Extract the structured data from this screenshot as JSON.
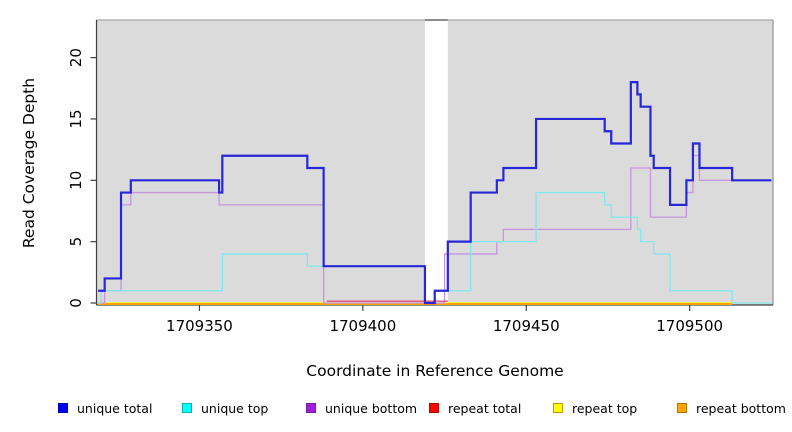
{
  "figure": {
    "xlabel": "Coordinate in Reference Genome",
    "ylabel": "Read Coverage Depth"
  },
  "chart_data": {
    "type": "line",
    "interpolation": "step-after",
    "title": "",
    "xlabel": "Coordinate in Reference Genome",
    "ylabel": "Read Coverage Depth",
    "xlim": [
      1709318.5,
      1709525.5
    ],
    "ylim": [
      0,
      23.1
    ],
    "x_ticks": [
      1709350,
      1709400,
      1709450,
      1709500
    ],
    "x_tick_labels": [
      "1709350",
      "1709400",
      "1709450",
      "1709500"
    ],
    "y_ticks": [
      0,
      5,
      10,
      15,
      20
    ],
    "y_tick_labels": [
      "0",
      "5",
      "10",
      "15",
      "20"
    ],
    "grid": false,
    "plot_background": "#dbdbdb",
    "gap_region": {
      "x_start": 1709419,
      "x_end": 1709426,
      "color": "#ffffff"
    },
    "draw_order": [
      "repeat top",
      "repeat bottom",
      "unique bottom",
      "repeat total",
      "unique top",
      "unique total"
    ],
    "series": [
      {
        "name": "unique total",
        "color": "#2727d8",
        "width": 2.2,
        "x_end": 1709525,
        "steps": [
          [
            1709319,
            1
          ],
          [
            1709321,
            2
          ],
          [
            1709326,
            9
          ],
          [
            1709329,
            10
          ],
          [
            1709356,
            9
          ],
          [
            1709357,
            12
          ],
          [
            1709383,
            11
          ],
          [
            1709388,
            3
          ],
          [
            1709419,
            0
          ],
          [
            1709422,
            1
          ],
          [
            1709426,
            5
          ],
          [
            1709433,
            9
          ],
          [
            1709441,
            10
          ],
          [
            1709443,
            11
          ],
          [
            1709453,
            15
          ],
          [
            1709474,
            14
          ],
          [
            1709476,
            13
          ],
          [
            1709482,
            18
          ],
          [
            1709484,
            17
          ],
          [
            1709485,
            16
          ],
          [
            1709488,
            12
          ],
          [
            1709489,
            11
          ],
          [
            1709494,
            8
          ],
          [
            1709499,
            10
          ],
          [
            1709501,
            13
          ],
          [
            1709503,
            11
          ],
          [
            1709513,
            10
          ]
        ]
      },
      {
        "name": "unique top",
        "color": "#80e8ec",
        "width": 1.3,
        "x_end": 1709525,
        "steps": [
          [
            1709319,
            0
          ],
          [
            1709320,
            1
          ],
          [
            1709357,
            4
          ],
          [
            1709383,
            3
          ],
          [
            1709419,
            0
          ],
          [
            1709422,
            1
          ],
          [
            1709433,
            5
          ],
          [
            1709453,
            9
          ],
          [
            1709474,
            8
          ],
          [
            1709476,
            7
          ],
          [
            1709484,
            6
          ],
          [
            1709485,
            5
          ],
          [
            1709489,
            4
          ],
          [
            1709494,
            1
          ],
          [
            1709513,
            0
          ]
        ]
      },
      {
        "name": "unique bottom",
        "color": "#c795df",
        "width": 1.3,
        "x_end": 1709525,
        "steps": [
          [
            1709319,
            0
          ],
          [
            1709321,
            1
          ],
          [
            1709326,
            8
          ],
          [
            1709329,
            9
          ],
          [
            1709356,
            8
          ],
          [
            1709388,
            0
          ],
          [
            1709425,
            4
          ],
          [
            1709441,
            5
          ],
          [
            1709443,
            6
          ],
          [
            1709482,
            11
          ],
          [
            1709488,
            7
          ],
          [
            1709499,
            9
          ],
          [
            1709501,
            12
          ],
          [
            1709503,
            10
          ]
        ]
      },
      {
        "name": "repeat total",
        "color": "#e0527a",
        "width": 1.3,
        "x_end": 1709513,
        "steps": [
          [
            1709319,
            0
          ]
        ],
        "visible_segment": [
          1709389,
          1709426
        ]
      },
      {
        "name": "repeat top",
        "color": "#ffff00",
        "width": 1.3,
        "x_end": 1709513,
        "steps": [
          [
            1709319,
            0
          ]
        ]
      },
      {
        "name": "repeat bottom",
        "color": "#ffa400",
        "width": 2,
        "x_end": 1709513,
        "steps": [
          [
            1709319,
            0
          ]
        ]
      }
    ],
    "legend": [
      {
        "label": "unique total",
        "fill": "#0000ee",
        "border": "#0000b4"
      },
      {
        "label": "unique top",
        "fill": "#00ffff",
        "border": "#00b4b4"
      },
      {
        "label": "unique bottom",
        "fill": "#a21ede",
        "border": "#711f9e"
      },
      {
        "label": "repeat total",
        "fill": "#ff0000",
        "border": "#b40000"
      },
      {
        "label": "repeat top",
        "fill": "#ffff00",
        "border": "#c89600"
      },
      {
        "label": "repeat bottom",
        "fill": "#ffa500",
        "border": "#b47400"
      }
    ],
    "legend_position": "bottom"
  }
}
